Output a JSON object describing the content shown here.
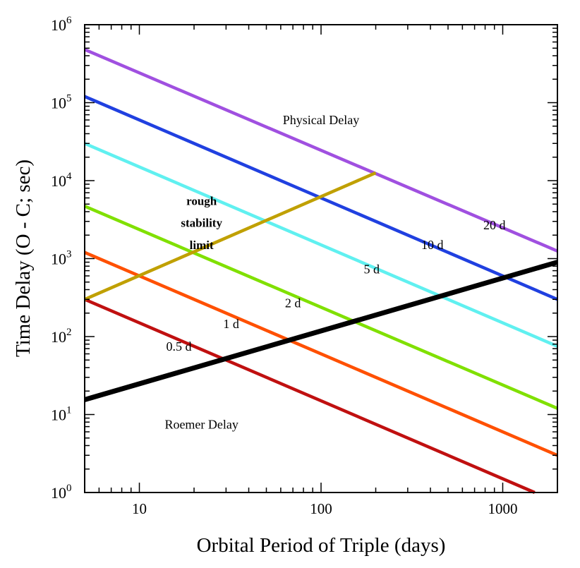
{
  "chart_data": {
    "type": "line",
    "title": "",
    "xlabel": "Orbital Period of Triple (days)",
    "ylabel": "Time Delay (O - C; sec)",
    "xscale": "log",
    "yscale": "log",
    "xlim": [
      5,
      2000
    ],
    "ylim": [
      1,
      1000000
    ],
    "xticks": [
      {
        "value": 10,
        "label": "10"
      },
      {
        "value": 100,
        "label": "100"
      },
      {
        "value": 1000,
        "label": "1000"
      }
    ],
    "yticks": [
      {
        "value": 1,
        "base": "10",
        "exp": "0"
      },
      {
        "value": 10,
        "base": "10",
        "exp": "1"
      },
      {
        "value": 100,
        "base": "10",
        "exp": "2"
      },
      {
        "value": 1000,
        "base": "10",
        "exp": "3"
      },
      {
        "value": 10000,
        "base": "10",
        "exp": "4"
      },
      {
        "value": 100000,
        "base": "10",
        "exp": "5"
      },
      {
        "value": 1000000,
        "base": "10",
        "exp": "6"
      }
    ],
    "grid": false,
    "series": [
      {
        "name": "20 d",
        "color": "#a050e0",
        "x": [
          5,
          2000
        ],
        "y": [
          480000,
          1250
        ]
      },
      {
        "name": "10 d",
        "color": "#2040e0",
        "x": [
          5,
          2000
        ],
        "y": [
          120000,
          300
        ]
      },
      {
        "name": "5 d",
        "color": "#60f0f0",
        "x": [
          5,
          2000
        ],
        "y": [
          30000,
          75
        ]
      },
      {
        "name": "2 d",
        "color": "#80e000",
        "x": [
          5,
          2000
        ],
        "y": [
          4700,
          12
        ]
      },
      {
        "name": "1 d",
        "color": "#ff5000",
        "x": [
          5,
          2000
        ],
        "y": [
          1200,
          3
        ]
      },
      {
        "name": "0.5 d",
        "color": "#c01010",
        "x": [
          5,
          1500
        ],
        "y": [
          300,
          1
        ]
      },
      {
        "name": "Roemer Delay",
        "color": "#000000",
        "x": [
          5,
          2000
        ],
        "y": [
          15.5,
          900
        ],
        "width": 7
      },
      {
        "name": "rough stability limit",
        "color": "#c0a000",
        "x": [
          5,
          200
        ],
        "y": [
          300,
          12600
        ]
      }
    ],
    "annotations": [
      {
        "text": "Physical Delay",
        "x": 100,
        "y": 60000,
        "bold": false
      },
      {
        "text": "20 d",
        "x": 900,
        "y": 2700,
        "bold": false
      },
      {
        "text": "10 d",
        "x": 410,
        "y": 1500,
        "bold": false
      },
      {
        "text": "5 d",
        "x": 190,
        "y": 730,
        "bold": false
      },
      {
        "text": "2 d",
        "x": 70,
        "y": 270,
        "bold": false
      },
      {
        "text": "1 d",
        "x": 32,
        "y": 145,
        "bold": false
      },
      {
        "text": "0.5 d",
        "x": 16.5,
        "y": 75,
        "bold": false
      },
      {
        "text": "rough",
        "x": 22,
        "y": 5500,
        "bold": true
      },
      {
        "text": "stability",
        "x": 22,
        "y": 2900,
        "bold": true
      },
      {
        "text": "limit",
        "x": 22,
        "y": 1500,
        "bold": true
      },
      {
        "text": "Roemer Delay",
        "x": 22,
        "y": 7.5,
        "bold": false
      }
    ]
  }
}
